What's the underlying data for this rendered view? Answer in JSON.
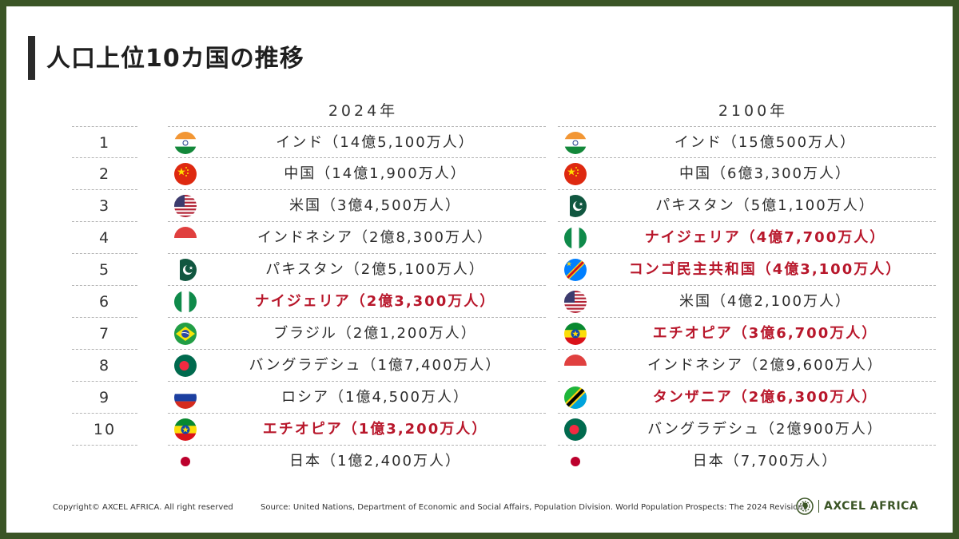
{
  "title": "人口上位10カ国の推移",
  "columns": {
    "left_header": "2024年",
    "right_header": "2100年"
  },
  "ranks": [
    "1",
    "2",
    "3",
    "4",
    "5",
    "6",
    "7",
    "8",
    "9",
    "10"
  ],
  "list_2024": [
    {
      "label": "インド（14億5,100万人）",
      "flag": "india-flag-icon",
      "highlight": false
    },
    {
      "label": "中国（14億1,900万人）",
      "flag": "china-flag-icon",
      "highlight": false
    },
    {
      "label": "米国（3億4,500万人）",
      "flag": "usa-flag-icon",
      "highlight": false
    },
    {
      "label": "インドネシア（2億8,300万人）",
      "flag": "indonesia-flag-icon",
      "highlight": false
    },
    {
      "label": "パキスタン（2億5,100万人）",
      "flag": "pakistan-flag-icon",
      "highlight": false
    },
    {
      "label": "ナイジェリア（2億3,300万人）",
      "flag": "nigeria-flag-icon",
      "highlight": true
    },
    {
      "label": "ブラジル（2億1,200万人）",
      "flag": "brazil-flag-icon",
      "highlight": false
    },
    {
      "label": "バングラデシュ（1億7,400万人）",
      "flag": "bangladesh-flag-icon",
      "highlight": false
    },
    {
      "label": "ロシア（1億4,500万人）",
      "flag": "russia-flag-icon",
      "highlight": false
    },
    {
      "label": "エチオピア（1億3,200万人）",
      "flag": "ethiopia-flag-icon",
      "highlight": true
    },
    {
      "label": "日本（1億2,400万人）",
      "flag": "japan-flag-icon",
      "highlight": false
    }
  ],
  "list_2100": [
    {
      "label": "インド（15億500万人）",
      "flag": "india-flag-icon",
      "highlight": false
    },
    {
      "label": "中国（6億3,300万人）",
      "flag": "china-flag-icon",
      "highlight": false
    },
    {
      "label": "パキスタン（5億1,100万人）",
      "flag": "pakistan-flag-icon",
      "highlight": false
    },
    {
      "label": "ナイジェリア（4億7,700万人）",
      "flag": "nigeria-flag-icon",
      "highlight": true
    },
    {
      "label": "コンゴ民主共和国（4億3,100万人）",
      "flag": "drc-flag-icon",
      "highlight": true
    },
    {
      "label": "米国（4億2,100万人）",
      "flag": "usa-flag-icon",
      "highlight": false
    },
    {
      "label": "エチオピア（3億6,700万人）",
      "flag": "ethiopia-flag-icon",
      "highlight": true
    },
    {
      "label": "インドネシア（2億9,600万人）",
      "flag": "indonesia-flag-icon",
      "highlight": false
    },
    {
      "label": "タンザニア（2億6,300万人）",
      "flag": "tanzania-flag-icon",
      "highlight": true
    },
    {
      "label": "バングラデシュ（2億900万人）",
      "flag": "bangladesh-flag-icon",
      "highlight": false
    },
    {
      "label": "日本（7,700万人）",
      "flag": "japan-flag-icon",
      "highlight": false
    }
  ],
  "footer": {
    "copyright": "Copyright© AXCEL AFRICA. All right reserved",
    "source": "Source: United Nations, Department of Economic and Social Affairs, Population Division. World Population Prospects: The 2024 Revision.",
    "brand": "AXCEL AFRICA"
  },
  "colors": {
    "frame": "#3b5526",
    "highlight": "#b8172b",
    "text": "#2b2b2b"
  }
}
